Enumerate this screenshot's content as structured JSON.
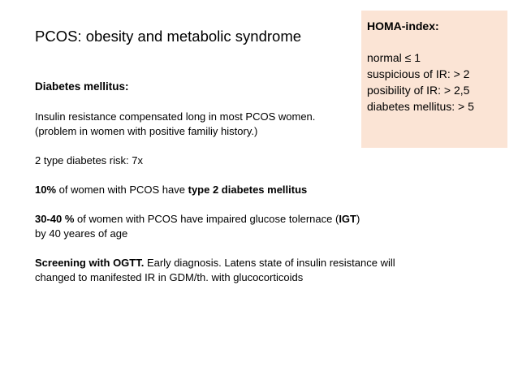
{
  "slide": {
    "title": "PCOS: obesity and metabolic syndrome",
    "section_heading": "Diabetes mellitus:",
    "line_ir_1": "Insulin resistance compensated long in most PCOS women.",
    "line_ir_2": "(problem in women with positive familiy history.)",
    "line_risk": "2 type diabetes risk: 7x",
    "t2dm": {
      "pct": "10%",
      "mid": " of women with PCOS have ",
      "bold_end": "type 2 diabetes mellitus"
    },
    "igt": {
      "pct": "30-40 %",
      "mid": " of women with PCOS have impaired glucose tolernace (",
      "abbr": "IGT",
      "close": ")",
      "line2": "by 40 yeares of age"
    },
    "screening": {
      "bold_start": "Screening with OGTT.",
      "rest_line1": " Early diagnosis. Latens state of insulin resistance will",
      "line2": "changed to manifested IR in GDM/th. with glucocorticoids"
    }
  },
  "homa_box": {
    "title": "HOMA-index:",
    "lines": [
      "normal ≤ 1",
      "suspicious of IR: > 2",
      "posibility of IR: > 2,5",
      "diabetes mellitus: > 5"
    ],
    "background_color": "#fbe4d5"
  }
}
